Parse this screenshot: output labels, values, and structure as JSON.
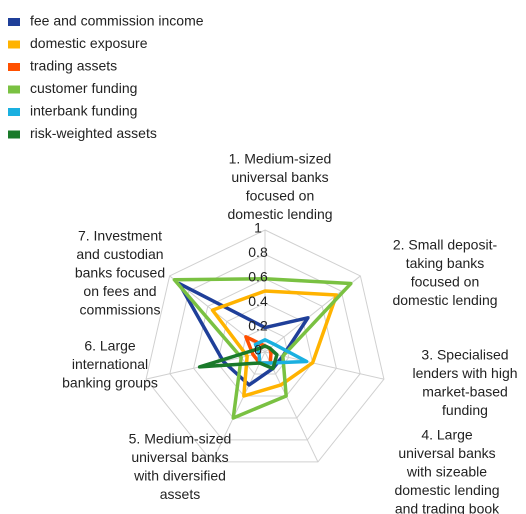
{
  "chart_data": {
    "type": "radar",
    "categories": [
      [
        "1. Medium-sized",
        "universal banks",
        "focused on",
        "domestic lending"
      ],
      [
        "2. Small deposit-",
        "taking banks",
        "focused on",
        "domestic lending"
      ],
      [
        "3. Specialised",
        "lenders with high",
        "market-based",
        "funding"
      ],
      [
        "4. Large",
        "universal banks",
        "with sizeable",
        "domestic lending",
        "and trading book"
      ],
      [
        "5. Medium-sized",
        "universal banks",
        "with diversified",
        "assets"
      ],
      [
        "6. Large",
        "international",
        "banking groups"
      ],
      [
        "7. Investment",
        "and custodian",
        "banks focused",
        "on fees and",
        "commissions"
      ]
    ],
    "series": [
      {
        "name": "fee and commission income",
        "color": "#1f3f99",
        "values": [
          0.2,
          0.45,
          0.15,
          0.15,
          0.3,
          0.35,
          0.9
        ]
      },
      {
        "name": "domestic exposure",
        "color": "#ffb300",
        "values": [
          0.5,
          0.75,
          0.4,
          0.3,
          0.4,
          0.15,
          0.55
        ]
      },
      {
        "name": "trading assets",
        "color": "#ff5000",
        "values": [
          0.05,
          0.05,
          0.05,
          0.1,
          0.1,
          0.1,
          0.2
        ]
      },
      {
        "name": "customer funding",
        "color": "#7ac142",
        "values": [
          0.6,
          0.9,
          0.15,
          0.4,
          0.6,
          0.2,
          0.95
        ]
      },
      {
        "name": "interbank funding",
        "color": "#1ab0e0",
        "values": [
          0.1,
          0.1,
          0.35,
          0.1,
          0.1,
          0.05,
          0.1
        ]
      },
      {
        "name": "risk-weighted assets",
        "color": "#1a7a2a",
        "values": [
          0.05,
          0.05,
          0.1,
          0.15,
          0.1,
          0.55,
          0.05
        ]
      }
    ],
    "ylim": [
      0,
      1
    ],
    "yticks": [
      0,
      0.2,
      0.4,
      0.6,
      0.8,
      1
    ],
    "grid": true
  }
}
